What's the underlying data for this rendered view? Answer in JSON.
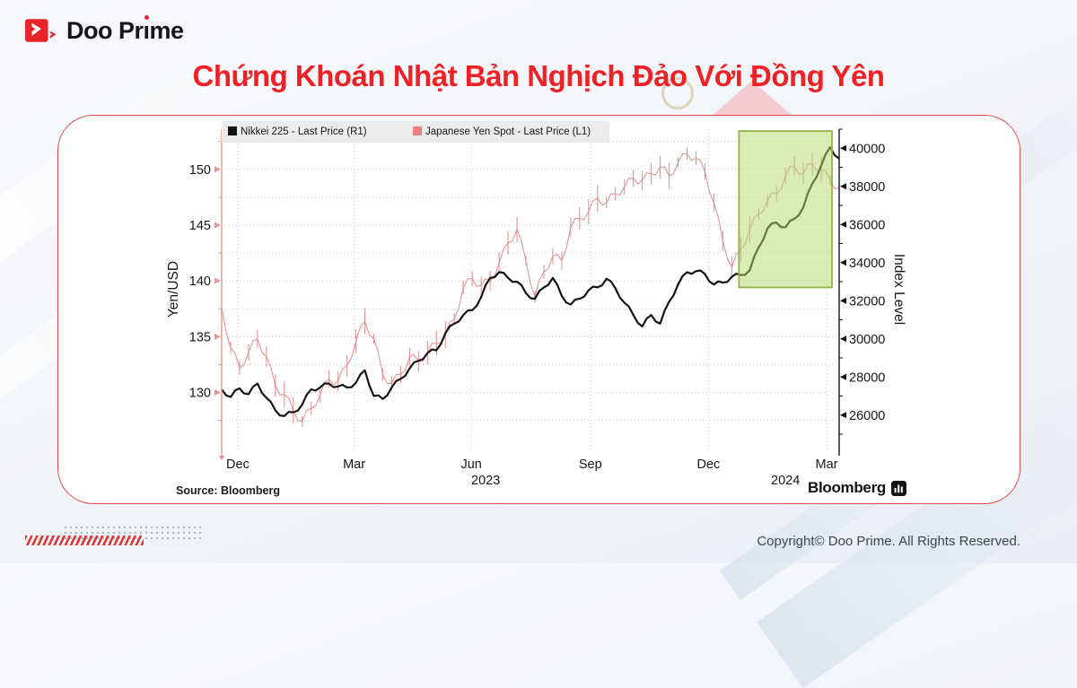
{
  "brand": {
    "logo_pre": "Doo Pr",
    "logo_i": "ı",
    "logo_post": "me"
  },
  "title": "Chứng Khoán Nhật Bản Nghịch Đảo Với Đồng Yên",
  "chart_card": {
    "source_text": "Source:  Bloomberg",
    "watermark_text": "Bloomberg"
  },
  "footer": {
    "copyright": "Copyright© Doo Prime. All Rights Reserved."
  },
  "colors": {
    "accent_red": "#ee2226",
    "card_border": "#e14b4b",
    "nikkei_line": "#141414",
    "yen_line": "#e08b8b",
    "legend_bg": "#ececec",
    "highlight_fill": "#b5d96a",
    "highlight_border": "#8fb445"
  },
  "chart_data": {
    "type": "line",
    "title": "",
    "legend": [
      {
        "label": "Nikkei 225 - Last Price (R1)",
        "color": "#141414"
      },
      {
        "label": "Japanese Yen Spot - Last Price (L1)",
        "color": "#ee8080"
      }
    ],
    "left_axis": {
      "label": "Yen/USD",
      "range": [
        124.9,
        153.6
      ],
      "ticks": [
        130,
        135,
        140,
        145,
        150
      ],
      "minor_ticks": [
        127.5,
        132.5,
        137.5,
        142.5,
        147.5,
        152.5
      ],
      "color": "#e89494"
    },
    "right_axis": {
      "label": "Index Level",
      "range": [
        24200,
        41000
      ],
      "ticks": [
        26000,
        28000,
        30000,
        32000,
        34000,
        36000,
        38000,
        40000
      ],
      "minor_step": 2000,
      "color": "#141414"
    },
    "x_axis": {
      "total_weeks": 69,
      "ticks": [
        {
          "label": "Dec",
          "week": 1.8
        },
        {
          "label": "Mar",
          "week": 14.8
        },
        {
          "label": "Jun",
          "week": 27.9
        },
        {
          "label": "Sep",
          "week": 41.2
        },
        {
          "label": "Dec",
          "week": 54.4
        },
        {
          "label": "Mar",
          "week": 67.6
        }
      ],
      "years": [
        {
          "label": "2023",
          "week": 29.5
        },
        {
          "label": "2024",
          "week": 63
        }
      ]
    },
    "series": [
      {
        "name": "Japanese Yen Spot - Last Price (L1)",
        "axis": "left",
        "color": "#e08b8b",
        "style": "hl-bars",
        "values": [
          137.6,
          134.0,
          132.2,
          133.6,
          134.8,
          133.2,
          130.6,
          129.8,
          128.4,
          127.4,
          128.6,
          129.8,
          131.2,
          131.0,
          132.4,
          134.6,
          136.4,
          134.8,
          131.6,
          130.8,
          131.6,
          133.2,
          132.8,
          133.6,
          134.4,
          135.2,
          136.6,
          139.4,
          140.2,
          139.6,
          140.0,
          141.6,
          143.4,
          144.6,
          141.8,
          138.6,
          140.8,
          142.2,
          141.8,
          144.8,
          145.6,
          146.2,
          147.4,
          147.0,
          147.8,
          148.4,
          149.2,
          149.0,
          149.6,
          150.2,
          149.4,
          150.6,
          151.4,
          151.0,
          149.8,
          147.0,
          143.6,
          141.2,
          142.8,
          144.6,
          146.0,
          147.2,
          147.8,
          149.4,
          150.3,
          149.6,
          150.5,
          150.0,
          149.0,
          148.3
        ]
      },
      {
        "name": "Nikkei 225 - Last Price (R1)",
        "axis": "right",
        "color": "#141414",
        "style": "line",
        "values": [
          27350,
          26950,
          27400,
          27100,
          27650,
          26900,
          26250,
          25950,
          26150,
          26550,
          27350,
          27450,
          27650,
          27500,
          27450,
          27700,
          28350,
          27000,
          26850,
          27450,
          27900,
          28450,
          28850,
          29250,
          29400,
          30300,
          30800,
          31250,
          31500,
          32200,
          33200,
          33500,
          33200,
          33000,
          32400,
          32100,
          32700,
          33200,
          32250,
          31800,
          32100,
          32550,
          32700,
          33150,
          32650,
          31900,
          31250,
          30650,
          31250,
          30800,
          31950,
          32850,
          33500,
          33550,
          33400,
          32850,
          32950,
          33250,
          33350,
          33600,
          34800,
          35800,
          36100,
          35850,
          36300,
          36900,
          38150,
          39100,
          40050,
          39450
        ]
      }
    ],
    "highlight_box": {
      "week_start": 57.8,
      "week_end": 68.2,
      "value_low": 32700,
      "value_high": 40900,
      "fill": "#b5d96a",
      "fill_opacity": 0.5,
      "border": "#8fb445"
    }
  }
}
